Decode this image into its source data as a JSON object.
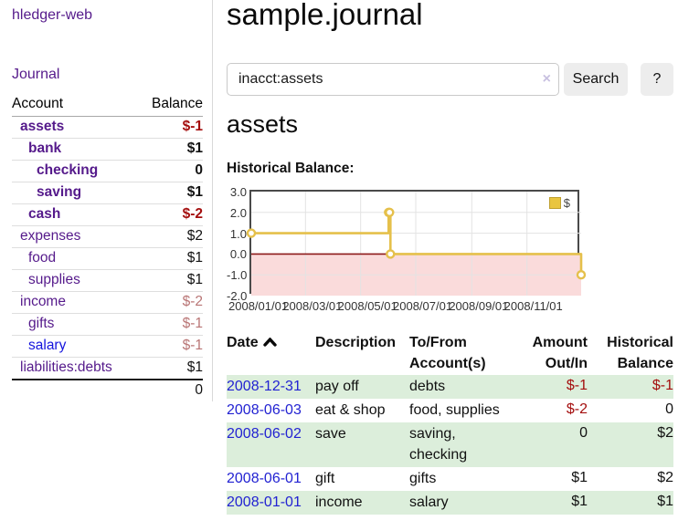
{
  "app": {
    "title": "hledger-web",
    "nav_journal": "Journal"
  },
  "colors": {
    "link_purple": "#551a8b",
    "link_blue": "#1414dd",
    "negative_strong": "#a40e0e",
    "negative_muted": "#b97575",
    "row_stripe_green": "#dceedb",
    "button_bg": "#ededed",
    "chart_line_gold": "#e5c04b",
    "chart_negative_fill": "#fadbdb",
    "chart_zero_line": "#8d1a1a"
  },
  "sidebar": {
    "accounts_header": {
      "account": "Account",
      "balance": "Balance"
    },
    "accounts": [
      {
        "name": "assets",
        "depth": 1,
        "bold": true,
        "balance": "$-1",
        "balance_style": "neg-strong"
      },
      {
        "name": "bank",
        "depth": 2,
        "bold": true,
        "balance": "$1",
        "balance_style": "pos"
      },
      {
        "name": "checking",
        "depth": 3,
        "bold": true,
        "balance": "0",
        "balance_style": "pos"
      },
      {
        "name": "saving",
        "depth": 3,
        "bold": true,
        "balance": "$1",
        "balance_style": "pos"
      },
      {
        "name": "cash",
        "depth": 2,
        "bold": true,
        "balance": "$-2",
        "balance_style": "neg-strong"
      },
      {
        "name": "expenses",
        "depth": 1,
        "bold": false,
        "balance": "$2",
        "balance_style": "pos"
      },
      {
        "name": "food",
        "depth": 2,
        "bold": false,
        "balance": "$1",
        "balance_style": "pos"
      },
      {
        "name": "supplies",
        "depth": 2,
        "bold": false,
        "balance": "$1",
        "balance_style": "pos"
      },
      {
        "name": "income",
        "depth": 1,
        "bold": false,
        "balance": "$-2",
        "balance_style": "neg-muted"
      },
      {
        "name": "gifts",
        "depth": 2,
        "bold": false,
        "balance": "$-1",
        "balance_style": "neg-muted"
      },
      {
        "name": "salary",
        "depth": 2,
        "bold": false,
        "unvisited": true,
        "balance": "$-1",
        "balance_style": "neg-muted"
      },
      {
        "name": "liabilities:debts",
        "depth": 1,
        "bold": false,
        "balance": "$1",
        "balance_style": "pos",
        "last_before_total": true
      }
    ],
    "total": "0"
  },
  "header": {
    "title": "sample.journal"
  },
  "search": {
    "value": "inacct:assets",
    "clear_label": "×",
    "button": "Search",
    "help": "?"
  },
  "register": {
    "account_title": "assets",
    "chart_label": "Historical Balance:",
    "table": {
      "headers": [
        {
          "label": "Date",
          "sorted": "asc"
        },
        {
          "label": "Description"
        },
        {
          "label": "To/From Account(s)"
        },
        {
          "label": "Amount Out/In"
        },
        {
          "label": "Historical Balance"
        }
      ],
      "rows": [
        {
          "date": "2008-12-31",
          "description": "pay off",
          "accounts": "debts",
          "amount": "$-1",
          "amount_neg": true,
          "balance": "$-1",
          "balance_neg": true,
          "striped": true
        },
        {
          "date": "2008-06-03",
          "description": "eat & shop",
          "accounts": "food, supplies",
          "amount": "$-2",
          "amount_neg": true,
          "balance": "0",
          "balance_neg": false,
          "striped": false
        },
        {
          "date": "2008-06-02",
          "description": "save",
          "accounts": "saving, checking",
          "amount": "0",
          "amount_neg": false,
          "balance": "$2",
          "balance_neg": false,
          "striped": true
        },
        {
          "date": "2008-06-01",
          "description": "gift",
          "accounts": "gifts",
          "amount": "$1",
          "amount_neg": false,
          "balance": "$2",
          "balance_neg": false,
          "striped": false
        },
        {
          "date": "2008-01-01",
          "description": "income",
          "accounts": "salary",
          "amount": "$1",
          "amount_neg": false,
          "balance": "$1",
          "balance_neg": false,
          "striped": true
        }
      ]
    }
  },
  "chart_data": {
    "type": "line",
    "title": "Historical Balance",
    "legend": "$",
    "legend_position": "top-right",
    "grid": true,
    "x_start": "2008-01-01",
    "x_days": 365,
    "ylim": [
      -2,
      3
    ],
    "y_ticks": [
      {
        "v": 3,
        "label": "3.0"
      },
      {
        "v": 2,
        "label": "2.0"
      },
      {
        "v": 1,
        "label": "1.0"
      },
      {
        "v": 0,
        "label": "0.0"
      },
      {
        "v": -1,
        "label": "-1.0"
      },
      {
        "v": -2,
        "label": "-2.0"
      }
    ],
    "y_gridlines": [
      2,
      1,
      -1
    ],
    "x_ticks": [
      {
        "date": "2008-01-01",
        "label": "2008/01/01"
      },
      {
        "date": "2008-03-01",
        "label": "2008/03/01"
      },
      {
        "date": "2008-05-01",
        "label": "2008/05/01"
      },
      {
        "date": "2008-07-01",
        "label": "2008/07/01"
      },
      {
        "date": "2008-09-01",
        "label": "2008/09/01"
      },
      {
        "date": "2008-11-01",
        "label": "2008/11/01"
      }
    ],
    "series": [
      {
        "name": "$",
        "color": "#e5c04b",
        "step": true,
        "points": [
          [
            "2008-01-01",
            1
          ],
          [
            "2008-06-01",
            2
          ],
          [
            "2008-06-02",
            2
          ],
          [
            "2008-06-03",
            0
          ],
          [
            "2008-12-31",
            -1
          ]
        ]
      }
    ],
    "negative_region_color": "#fadbdb",
    "zero_line_color": "#8d1a1a"
  }
}
